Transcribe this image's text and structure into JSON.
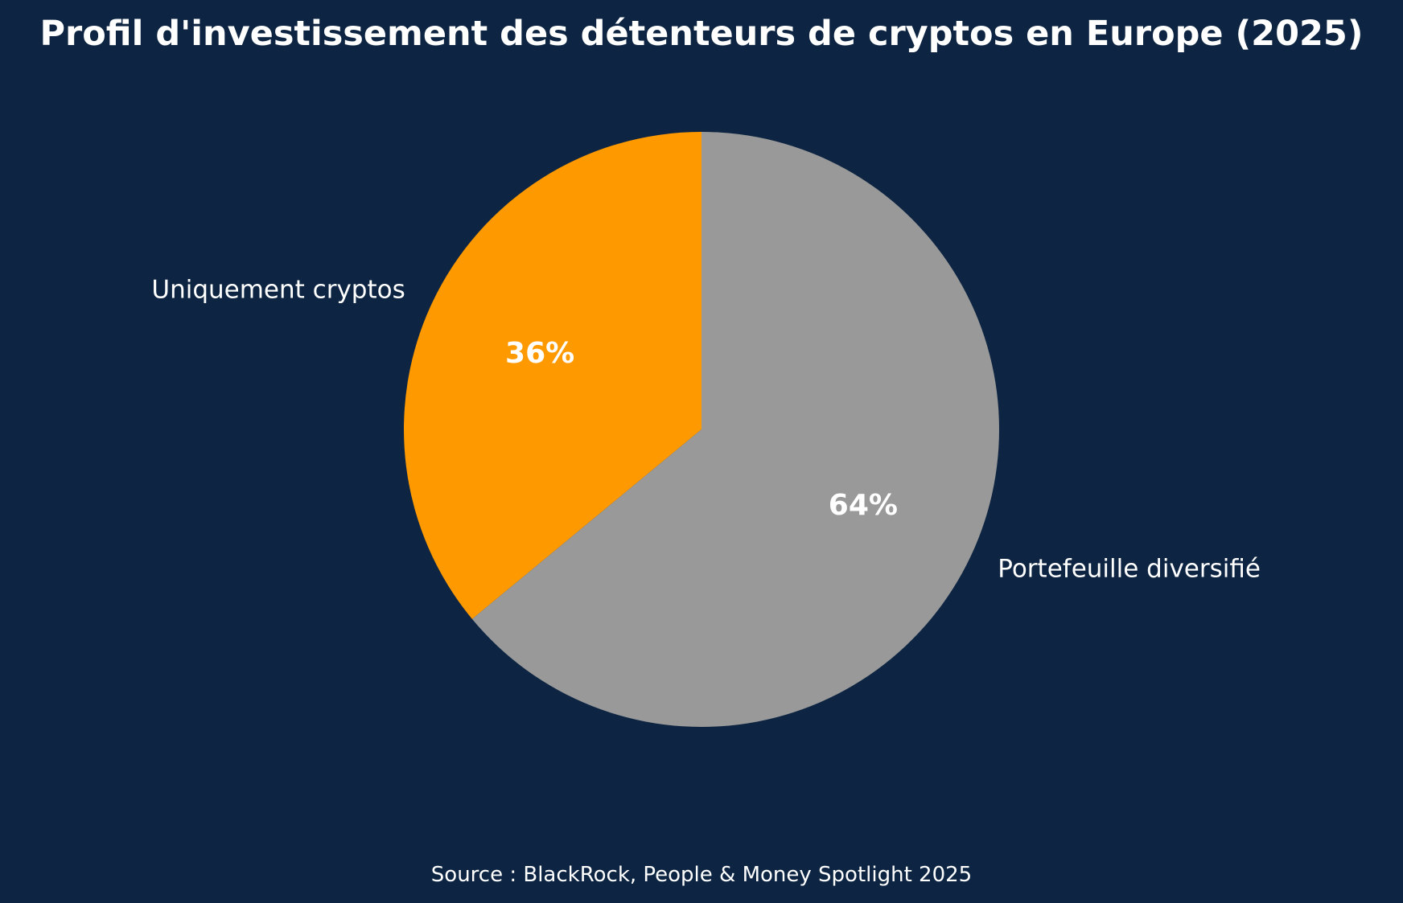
{
  "chart_data": {
    "type": "pie",
    "title": "Profil d'investissement des détenteurs de cryptos en Europe (2025)",
    "categories": [
      "Uniquement cryptos",
      "Portefeuille diversifié"
    ],
    "values": [
      36,
      64
    ],
    "value_labels": [
      "36%",
      "64%"
    ],
    "unit": "%",
    "colors": [
      "#ff9900",
      "#999999"
    ],
    "background_color": "#0d2542",
    "start_angle_deg": 90,
    "direction": "counterclockwise",
    "legend": "none"
  },
  "source": "Source : BlackRock, People & Money Spotlight 2025"
}
